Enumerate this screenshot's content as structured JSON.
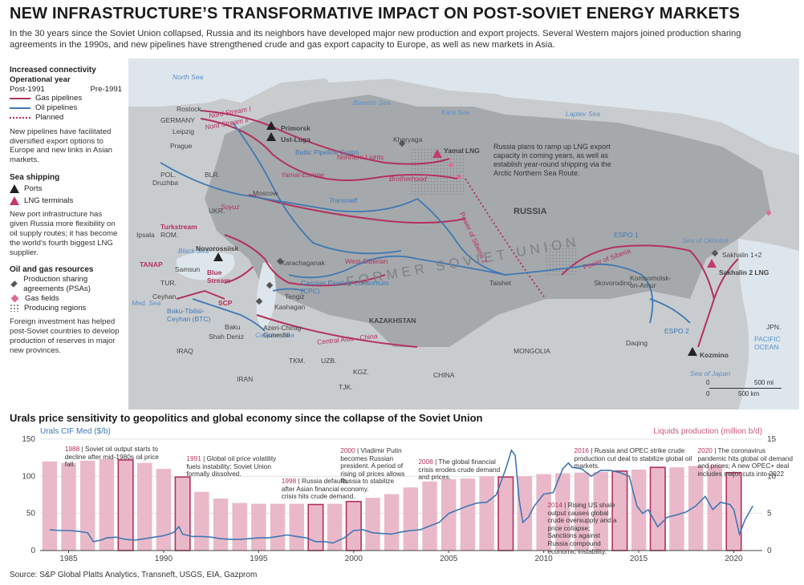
{
  "header": {
    "title": "NEW INFRASTRUCTURE’S TRANSFORMATIVE IMPACT ON POST-SOVIET ENERGY MARKETS",
    "subtitle": "In the 30 years since the Soviet Union collapsed, Russia and its neighbors have developed major new production and export projects. Several Western majors joined production sharing agreements in the 1990s, and new pipelines have strengthened crude and gas export capacity to Europe, as well as new markets in Asia."
  },
  "legend": {
    "connectivity_title": "Increased connectivity",
    "operational_year": "Operational year",
    "post1991": "Post-1991",
    "pre1991": "Pre-1991",
    "gas": "Gas pipelines",
    "oil": "Oil pipelines",
    "planned": "Planned",
    "note1": "New pipelines have facilitated diversified export options to Europe and new links in Asian markets.",
    "sea_title": "Sea shipping",
    "ports": "Ports",
    "lng": "LNG terminals",
    "note2": "New port infrastructure has given Russia more flexibility on oil supply routes; it has become the world’s fourth biggest LNG supplier.",
    "res_title": "Oil and gas resources",
    "psa": "Production sharing agreements (PSAs)",
    "gasfields": "Gas fields",
    "regions": "Producing regions",
    "note3": "Foreign investment has helped post-Soviet countries to develop production of reserves in major new provinces."
  },
  "map": {
    "colors": {
      "land": "#c9ccce",
      "fsu": "#a6a9ab",
      "sea": "#dde6ec",
      "gas": "#b3315c",
      "oil": "#3f77b5",
      "text": "#444444",
      "seatext": "#5b8fc7"
    },
    "seas": [
      "North Sea",
      "Barents Sea",
      "Kara Sea",
      "Laptev Sea",
      "Black Sea",
      "Med. Sea",
      "Caspian Sea",
      "Sea of Okhotsk",
      "Sea of Japan",
      "PACIFIC OCEAN"
    ],
    "countries": [
      "RUSSIA",
      "KAZAKHSTAN",
      "GERMANY",
      "POL.",
      "BLR.",
      "UKR.",
      "ROM.",
      "TUR.",
      "IRAQ",
      "IRAN",
      "TKM.",
      "UZB.",
      "KGZ.",
      "TJK.",
      "MONGOLIA",
      "CHINA",
      "JPN."
    ],
    "former_soviet_label": "FORMER SOVIET UNION",
    "places": [
      "Rostock",
      "Leipzig",
      "Prague",
      "Druzhba",
      "Moscow",
      "Ipsala",
      "Samsun",
      "Ceyhan",
      "Baku",
      "Shah Deniz",
      "Azeri-Chirag-Guneshli",
      "Tengiz",
      "Kashagan",
      "Karachaganak",
      "Kharyaga",
      "Taishet",
      "Skovorodino",
      "Komsomolsk-on-Amur",
      "Daqing"
    ],
    "ports": [
      "Primorsk",
      "Ust-Luga",
      "Novorossiisk",
      "Kozmino"
    ],
    "lng_terminals": [
      "Yamal LNG",
      "Sakhalin 2 LNG"
    ],
    "psa_labels": [
      "Sakhalin 1+2"
    ],
    "pipelines_gas": [
      "Nord Stream I",
      "Nord Stream II",
      "Northern Lights",
      "Yamal-Europe",
      "Brotherhood",
      "Power of Siberia",
      "Turkstream",
      "Blue Stream",
      "TANAP",
      "SCP",
      "Soyuz",
      "West-Siberian",
      "Central Asia - China",
      "Power of Siberia 2"
    ],
    "pipelines_oil": [
      "Baltic Pipeline Systm",
      "Transneft",
      "Caspian Pipeline Consortium (CPC)",
      "Baku-Tbilisi-Ceyhan (BTC)",
      "ESPO 1",
      "ESPO 2"
    ],
    "callout": "Russia plans to ramp up LNG export capacity in coming years, as well as establish year-round shipping via the Arctic Northern Sea Route.",
    "scale": {
      "mi": "500 mi",
      "km": "500 km",
      "zero": "0"
    }
  },
  "chart_title": "Urals price sensitivity to geopolitics and global economy since the collapse of the Soviet Union",
  "chart_data": {
    "type": "bar",
    "left_axis_label": "Urals CIF Med ($/b)",
    "right_axis_label": "Liquids production (million b/d)",
    "left_ylim": [
      0,
      150
    ],
    "right_ylim": [
      0,
      15
    ],
    "left_ticks": [
      "0",
      "50",
      "100",
      "150"
    ],
    "right_ticks": [
      "0",
      "5",
      "10",
      "15"
    ],
    "x_ticks": [
      "1985",
      "1990",
      "1995",
      "2000",
      "2005",
      "2010",
      "2015",
      "2020"
    ],
    "grid": true,
    "colors": {
      "bar": "#eab9c9",
      "highlight_border": "#b3315c",
      "line": "#3f77b5",
      "axis_left": "#3f77b5",
      "axis_right": "#c9587f",
      "annotation_year": "#b3315c"
    },
    "bars": {
      "years": [
        1984,
        1985,
        1986,
        1987,
        1988,
        1989,
        1990,
        1991,
        1992,
        1993,
        1994,
        1995,
        1996,
        1997,
        1998,
        1999,
        2000,
        2001,
        2002,
        2003,
        2004,
        2005,
        2006,
        2007,
        2008,
        2009,
        2010,
        2011,
        2012,
        2013,
        2014,
        2015,
        2016,
        2017,
        2018,
        2019,
        2020
      ],
      "values": [
        12.0,
        11.8,
        12.1,
        12.3,
        12.2,
        11.8,
        11.0,
        9.9,
        7.9,
        7.0,
        6.4,
        6.3,
        6.3,
        6.3,
        6.2,
        6.3,
        6.6,
        7.1,
        7.6,
        8.5,
        9.3,
        9.6,
        9.7,
        10.0,
        9.9,
        10.0,
        10.3,
        10.4,
        10.5,
        10.6,
        10.7,
        10.9,
        11.2,
        11.2,
        11.4,
        11.5,
        10.5
      ],
      "highlighted": [
        1988,
        1991,
        1998,
        2000,
        2008,
        2014,
        2016,
        2020
      ]
    },
    "series": [
      {
        "name": "Urals CIF Med ($/b)",
        "axis": "left",
        "x": [
          1984.0,
          1984.5,
          1985.0,
          1985.5,
          1986.0,
          1986.3,
          1986.7,
          1987.0,
          1987.5,
          1988.0,
          1988.5,
          1989.0,
          1989.5,
          1990.0,
          1990.5,
          1990.8,
          1991.0,
          1991.5,
          1992.0,
          1992.5,
          1993.0,
          1993.5,
          1994.0,
          1994.5,
          1995.0,
          1995.5,
          1996.0,
          1996.5,
          1997.0,
          1997.5,
          1998.0,
          1998.5,
          1998.9,
          1999.5,
          2000.0,
          2000.5,
          2001.0,
          2001.5,
          2002.0,
          2002.5,
          2003.0,
          2003.5,
          2004.0,
          2004.5,
          2005.0,
          2005.5,
          2006.0,
          2006.5,
          2007.0,
          2007.5,
          2008.0,
          2008.3,
          2008.5,
          2008.7,
          2008.9,
          2009.2,
          2009.5,
          2010.0,
          2010.5,
          2011.0,
          2011.3,
          2011.5,
          2012.0,
          2012.5,
          2013.0,
          2013.5,
          2014.0,
          2014.5,
          2014.9,
          2015.2,
          2015.5,
          2016.0,
          2016.5,
          2017.0,
          2017.5,
          2018.0,
          2018.5,
          2018.9,
          2019.3,
          2019.8,
          2020.0,
          2020.3,
          2020.6,
          2021.0
        ],
        "values": [
          28,
          27,
          27,
          26,
          24,
          12,
          14,
          17,
          18,
          15,
          14,
          16,
          18,
          20,
          24,
          32,
          22,
          19,
          19,
          18,
          16,
          15,
          15,
          16,
          17,
          17,
          19,
          21,
          19,
          17,
          12,
          12,
          10,
          17,
          27,
          28,
          24,
          23,
          22,
          25,
          27,
          28,
          33,
          38,
          50,
          55,
          60,
          64,
          65,
          75,
          110,
          135,
          128,
          70,
          38,
          45,
          60,
          76,
          78,
          110,
          118,
          112,
          110,
          100,
          108,
          108,
          105,
          100,
          60,
          50,
          55,
          32,
          45,
          48,
          52,
          60,
          73,
          55,
          65,
          62,
          55,
          22,
          42,
          60
        ]
      }
    ],
    "annotations": [
      {
        "year": "1988",
        "text": "Soviet oil output starts to decline after mid-1980s oil price fall."
      },
      {
        "year": "1991",
        "text": "Global oil price volatility fuels instability; Soviet Union formally dissolved."
      },
      {
        "year": "1998",
        "text": "Russia defaults after Asian financial crisis hits crude demand."
      },
      {
        "year": "2000",
        "text": "Vladimir Putin becomes Russian president. A period of rising oil prices allows Russia to stabilize economy."
      },
      {
        "year": "2008",
        "text": "The global financial crisis erodes crude demand and prices."
      },
      {
        "year": "2014",
        "text": "Rising US shale output causes global crude oversupply and a price collapse; Sanctions against Russia compound economic instability."
      },
      {
        "year": "2016",
        "text": "Russia and OPEC strike crude production cut deal to stabilize global oil markets."
      },
      {
        "year": "2020",
        "text": "The coronavirus pandemic hits global oil demand and prices; A new OPEC+ deal includes major cuts into 2022"
      }
    ]
  },
  "source": "Source: S&P Global Platts Analytics, Transneft, USGS, EIA, Gazprom"
}
